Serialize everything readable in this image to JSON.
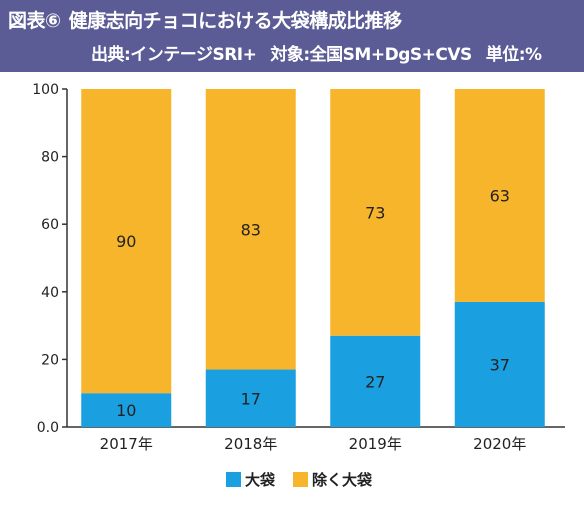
{
  "header": {
    "figure_label": "図表⑥",
    "title": "健康志向チョコにおける大袋構成比推移",
    "source": "出典:インテージSRI+",
    "scope": "対象:全国SM+DgS+CVS",
    "unit": "単位:%"
  },
  "colors": {
    "large_bag": "#1a9fe0",
    "non_large_bag": "#f7b52c",
    "header_bg": "#5b5b96"
  },
  "chart_data": {
    "type": "bar",
    "stacked": true,
    "categories": [
      "2017年",
      "2018年",
      "2019年",
      "2020年"
    ],
    "series": [
      {
        "name": "大袋",
        "values": [
          10,
          17,
          27,
          37
        ]
      },
      {
        "name": "除く大袋",
        "values": [
          90,
          83,
          73,
          63
        ]
      }
    ],
    "ylim": [
      0,
      100
    ],
    "yticks": [
      "0.0",
      "20",
      "40",
      "60",
      "80",
      "100"
    ],
    "grid": false,
    "legend_position": "bottom"
  }
}
